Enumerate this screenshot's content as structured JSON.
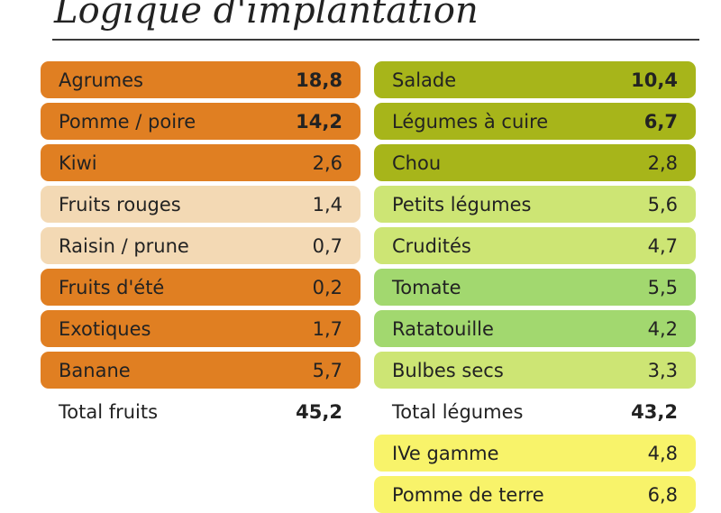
{
  "title": "Logique d'implantation",
  "colors": {
    "orange": "#e07f22",
    "beige": "#f3d9b4",
    "olive": "#a7b51a",
    "lightgreen": "#cde574",
    "green": "#a2d86f",
    "yellow": "#f8f36a"
  },
  "fruits": {
    "items": [
      {
        "label": "Agrumes",
        "value": "18,8",
        "bold": true,
        "color": "orange"
      },
      {
        "label": "Pomme / poire",
        "value": "14,2",
        "bold": true,
        "color": "orange"
      },
      {
        "label": "Kiwi",
        "value": "2,6",
        "bold": false,
        "color": "orange"
      },
      {
        "label": "Fruits rouges",
        "value": "1,4",
        "bold": false,
        "color": "beige"
      },
      {
        "label": "Raisin / prune",
        "value": "0,7",
        "bold": false,
        "color": "beige"
      },
      {
        "label": "Fruits d'été",
        "value": "0,2",
        "bold": false,
        "color": "orange"
      },
      {
        "label": "Exotiques",
        "value": "1,7",
        "bold": false,
        "color": "orange"
      },
      {
        "label": "Banane",
        "value": "5,7",
        "bold": false,
        "color": "orange"
      }
    ],
    "total_label": "Total fruits",
    "total_value": "45,2"
  },
  "legumes": {
    "items": [
      {
        "label": "Salade",
        "value": "10,4",
        "bold": true,
        "color": "olive"
      },
      {
        "label": "Légumes à cuire",
        "value": "6,7",
        "bold": true,
        "color": "olive"
      },
      {
        "label": "Chou",
        "value": "2,8",
        "bold": false,
        "color": "olive"
      },
      {
        "label": "Petits légumes",
        "value": "5,6",
        "bold": false,
        "color": "lightgreen"
      },
      {
        "label": "Crudités",
        "value": "4,7",
        "bold": false,
        "color": "lightgreen"
      },
      {
        "label": "Tomate",
        "value": "5,5",
        "bold": false,
        "color": "green"
      },
      {
        "label": "Ratatouille",
        "value": "4,2",
        "bold": false,
        "color": "green"
      },
      {
        "label": "Bulbes secs",
        "value": "3,3",
        "bold": false,
        "color": "lightgreen"
      }
    ],
    "total_label": "Total légumes",
    "total_value": "43,2",
    "extra_items": [
      {
        "label": "IVe gamme",
        "value": "4,8",
        "bold": false,
        "color": "yellow"
      },
      {
        "label": "Pomme de terre",
        "value": "6,8",
        "bold": false,
        "color": "yellow"
      }
    ]
  }
}
